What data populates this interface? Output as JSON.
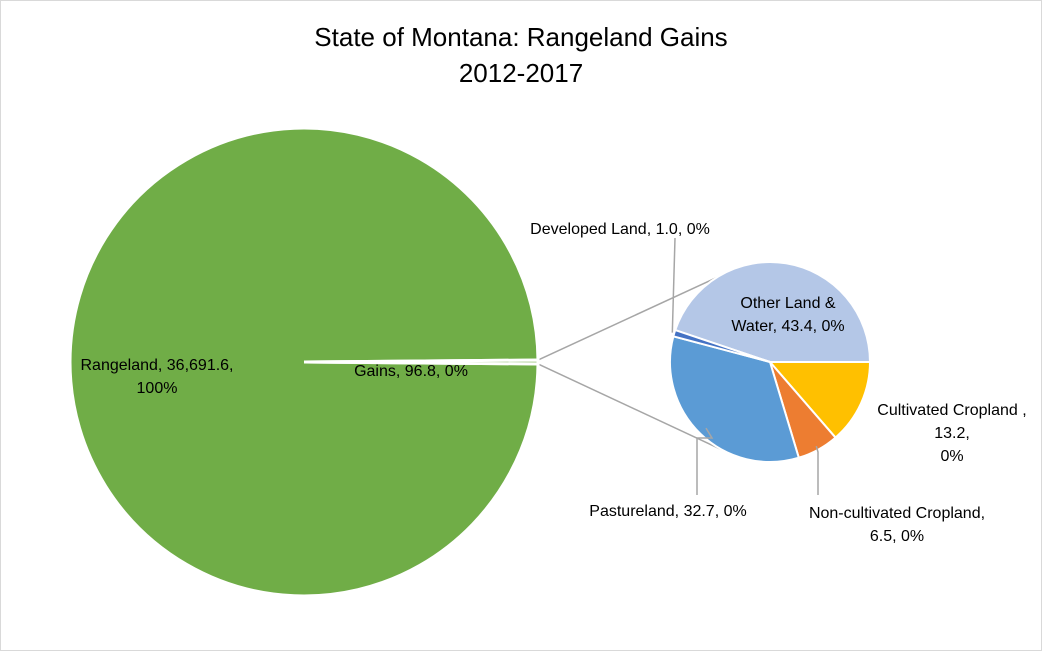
{
  "chart_data": {
    "type": "pie",
    "subtype": "pie-of-pie",
    "title": [
      "State of Montana: Rangeland Gains",
      "2012-2017"
    ],
    "main_pie": [
      {
        "name": "Rangeland",
        "value": 36691.6,
        "label": [
          "Rangeland, 36,691.6,",
          "100%"
        ],
        "color": "#70ad47"
      },
      {
        "name": "Gains",
        "value": 96.8,
        "label": [
          "Gains, 96.8, 0%"
        ],
        "color": "#70ad47"
      }
    ],
    "secondary_pie": [
      {
        "name": "Other Land & Water",
        "value": 43.4,
        "label": [
          "Other Land &",
          "Water, 43.4, 0%"
        ],
        "color": "#b4c7e7"
      },
      {
        "name": "Cultivated Cropland",
        "value": 13.2,
        "label": [
          "Cultivated Cropland ,",
          "13.2,",
          "0%"
        ],
        "color": "#ffc000"
      },
      {
        "name": "Non-cultivated Cropland",
        "value": 6.5,
        "label": [
          "Non-cultivated Cropland,",
          "6.5, 0%"
        ],
        "color": "#ed7d31"
      },
      {
        "name": "Pastureland",
        "value": 32.7,
        "label": [
          "Pastureland, 32.7, 0%"
        ],
        "color": "#5b9bd5"
      },
      {
        "name": "Developed Land",
        "value": 1.0,
        "label": [
          "Developed Land, 1.0, 0%"
        ],
        "color": "#4472c4"
      }
    ],
    "connector_color": "#a6a6a6",
    "leader_color": "#a6a6a6"
  }
}
